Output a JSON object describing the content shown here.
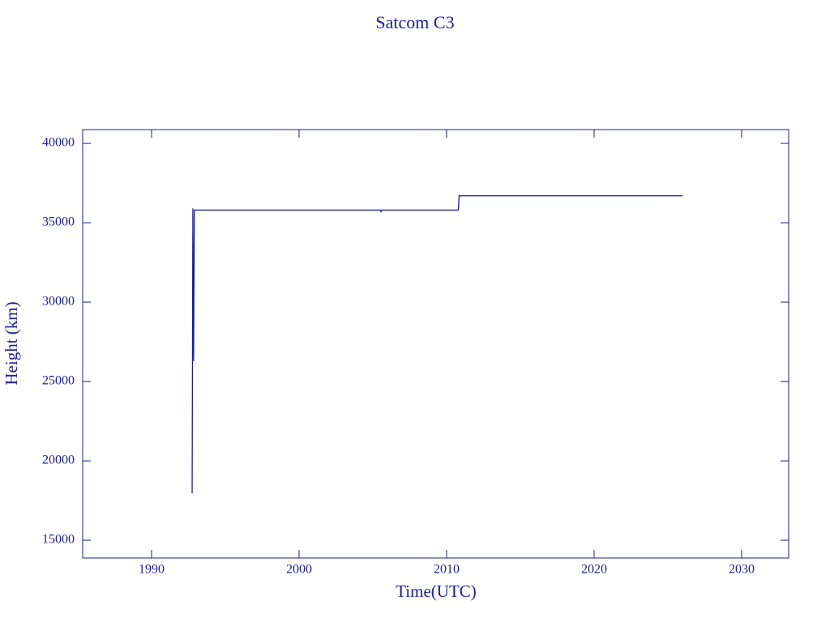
{
  "chart_data": {
    "type": "line",
    "title": "Satcom C3",
    "x_label": "Time(UTC)",
    "y_label": "Height (km)",
    "x": [
      1992.75,
      1992.8,
      1992.85,
      1992.9,
      2005.5,
      2005.55,
      2005.6,
      2010.8,
      2010.85,
      2026
    ],
    "series": [
      {
        "name": "Satcom C3",
        "color": "#1c1c96",
        "values": [
          17950,
          35900,
          26300,
          35800,
          35800,
          35700,
          35800,
          35800,
          36700,
          36700
        ]
      }
    ],
    "xlim": [
      1985.33,
      2033.19
    ],
    "xticks": [
      1990,
      2000,
      2010,
      2020,
      2030
    ],
    "ylim": [
      13880,
      40870
    ],
    "yticks": [
      15000,
      20000,
      25000,
      30000,
      35000,
      40000
    ],
    "grid": false
  }
}
